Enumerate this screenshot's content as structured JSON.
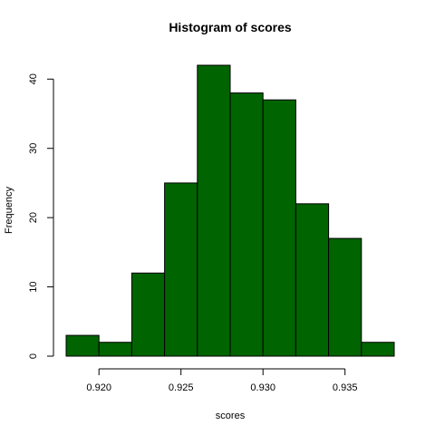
{
  "chart_data": {
    "type": "bar",
    "title": "Histogram of scores",
    "xlabel": "scores",
    "ylabel": "Frequency",
    "bar_color": "#006400",
    "bin_edges": [
      0.918,
      0.92,
      0.922,
      0.924,
      0.926,
      0.928,
      0.93,
      0.932,
      0.934,
      0.936,
      0.938
    ],
    "values": [
      3,
      2,
      12,
      25,
      42,
      38,
      37,
      22,
      17,
      2
    ],
    "xlim": [
      0.918,
      0.938
    ],
    "ylim": [
      0,
      42
    ],
    "x_ticks": [
      0.92,
      0.925,
      0.93,
      0.935
    ],
    "x_tick_labels": [
      "0.920",
      "0.925",
      "0.930",
      "0.935"
    ],
    "y_ticks": [
      0,
      10,
      20,
      30,
      40
    ],
    "y_tick_labels": [
      "0",
      "10",
      "20",
      "30",
      "40"
    ],
    "grid": false,
    "legend": "none"
  }
}
